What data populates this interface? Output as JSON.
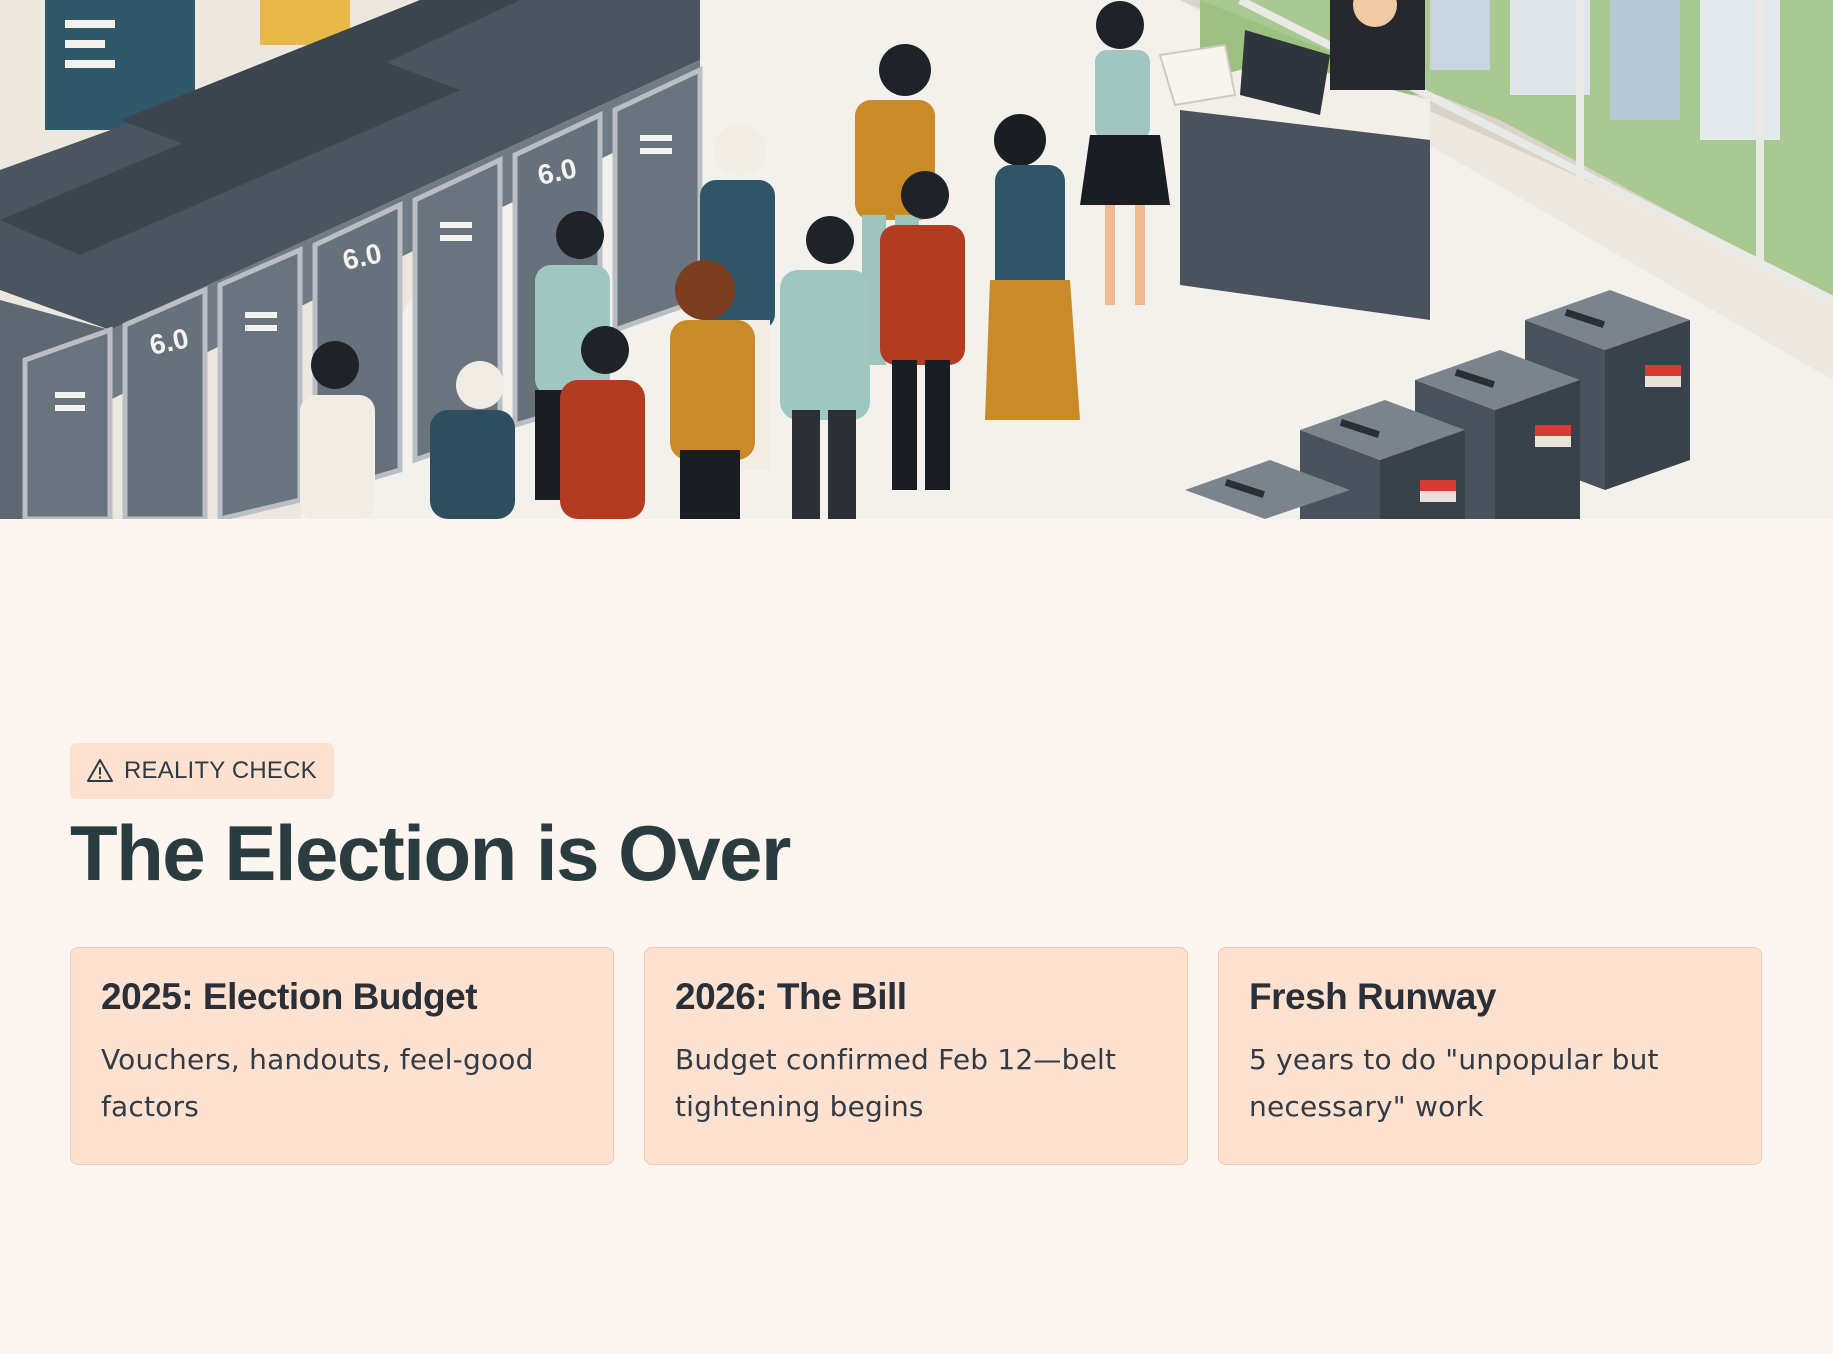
{
  "hero": {
    "booth_labels": [
      "6.0",
      "6.0",
      "6.0"
    ]
  },
  "badge": {
    "icon": "warning-triangle-icon",
    "label": "REALITY CHECK"
  },
  "title": "The Election is Over",
  "cards": [
    {
      "title": "2025: Election Budget",
      "body": "Vouchers, handouts, feel-good factors"
    },
    {
      "title": "2026: The Bill",
      "body": "Budget confirmed Feb 12—belt tightening begins"
    },
    {
      "title": "Fresh Runway",
      "body": "5 years to do \"unpopular but necessary\" work"
    }
  ],
  "colors": {
    "background": "#fdf6f0",
    "card": "#fde2d2",
    "card_border": "#f1c8b1",
    "heading": "#2a3c40"
  }
}
